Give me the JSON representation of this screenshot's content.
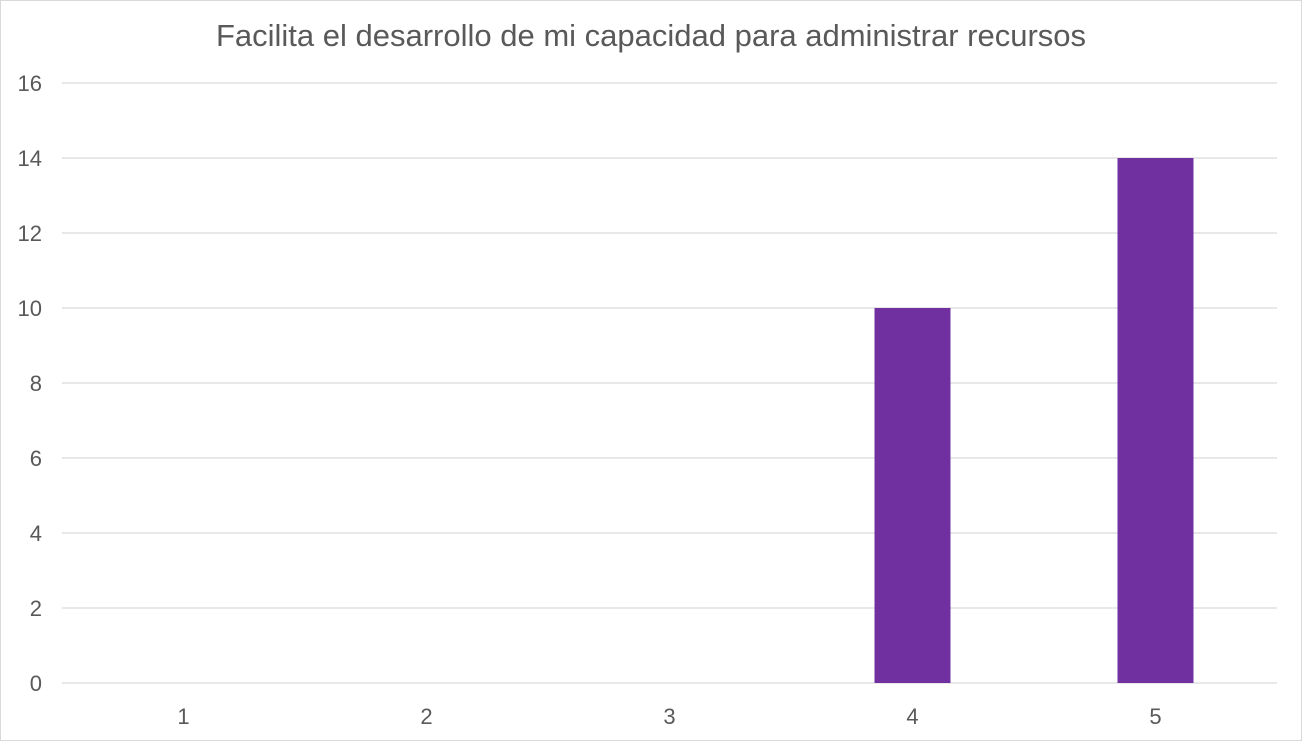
{
  "chart_data": {
    "type": "bar",
    "title": "Facilita el desarrollo de mi capacidad para administrar recursos",
    "categories": [
      "1",
      "2",
      "3",
      "4",
      "5"
    ],
    "values": [
      0,
      0,
      0,
      10,
      14
    ],
    "xlabel": "",
    "ylabel": "",
    "ylim": [
      0,
      16
    ],
    "yticks": [
      0,
      2,
      4,
      6,
      8,
      10,
      12,
      14,
      16
    ],
    "grid": true,
    "legend": "none",
    "colors": {
      "bar": "#7030a0",
      "grid": "#d9d9d9",
      "text": "#595959"
    }
  }
}
